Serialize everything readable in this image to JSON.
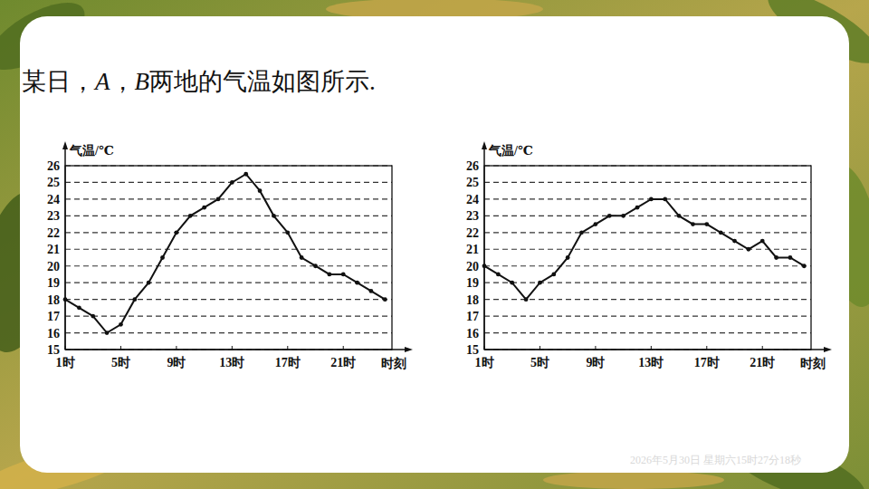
{
  "header": {
    "title": "某日，A，B两地的气温如图所示."
  },
  "footer": {
    "timestamp": "2026年5月30日 星期六15时27分18秒"
  },
  "chart_data": [
    {
      "type": "line",
      "x_label": "时刻",
      "y_label": "气温/℃",
      "x": [
        1,
        2,
        3,
        4,
        5,
        6,
        7,
        8,
        9,
        10,
        11,
        12,
        13,
        14,
        15,
        16,
        17,
        18,
        19,
        20,
        21,
        22,
        23,
        24
      ],
      "series": [
        {
          "name": "A",
          "color": "#111111",
          "marker": "dot",
          "line_style": "solid",
          "values": [
            18,
            17.5,
            17,
            16,
            16.5,
            18,
            19,
            20.5,
            22,
            23,
            23.5,
            24,
            25,
            25.5,
            24.5,
            23,
            22,
            20.5,
            20,
            19.5,
            19.5,
            19,
            18.5,
            18
          ]
        }
      ],
      "xlim": [
        1,
        24.5
      ],
      "xticks": [
        {
          "value": 1,
          "label": "1时"
        },
        {
          "value": 5,
          "label": "5时"
        },
        {
          "value": 9,
          "label": "9时"
        },
        {
          "value": 13,
          "label": "13时"
        },
        {
          "value": 17,
          "label": "17时"
        },
        {
          "value": 21,
          "label": "21时"
        }
      ],
      "ylim": [
        15,
        26
      ],
      "yticks": [
        15,
        16,
        17,
        18,
        19,
        20,
        21,
        22,
        23,
        24,
        25,
        26
      ],
      "grid": true
    },
    {
      "type": "line",
      "x_label": "时刻",
      "y_label": "气温/℃",
      "x": [
        1,
        2,
        3,
        4,
        5,
        6,
        7,
        8,
        9,
        10,
        11,
        12,
        13,
        14,
        15,
        16,
        17,
        18,
        19,
        20,
        21,
        22,
        23,
        24
      ],
      "series": [
        {
          "name": "B",
          "color": "#111111",
          "marker": "dot",
          "line_style": "solid",
          "values": [
            20,
            19.5,
            19,
            18,
            19,
            19.5,
            20.5,
            22,
            22.5,
            23,
            23,
            23.5,
            24,
            24,
            23,
            22.5,
            22.5,
            22,
            21.5,
            21,
            21.5,
            20.5,
            20.5,
            20
          ]
        }
      ],
      "xlim": [
        1,
        24.5
      ],
      "xticks": [
        {
          "value": 1,
          "label": "1时"
        },
        {
          "value": 5,
          "label": "5时"
        },
        {
          "value": 9,
          "label": "9时"
        },
        {
          "value": 13,
          "label": "13时"
        },
        {
          "value": 17,
          "label": "17时"
        },
        {
          "value": 21,
          "label": "21时"
        }
      ],
      "ylim": [
        15,
        26
      ],
      "yticks": [
        15,
        16,
        17,
        18,
        19,
        20,
        21,
        22,
        23,
        24,
        25,
        26
      ],
      "grid": true
    }
  ]
}
